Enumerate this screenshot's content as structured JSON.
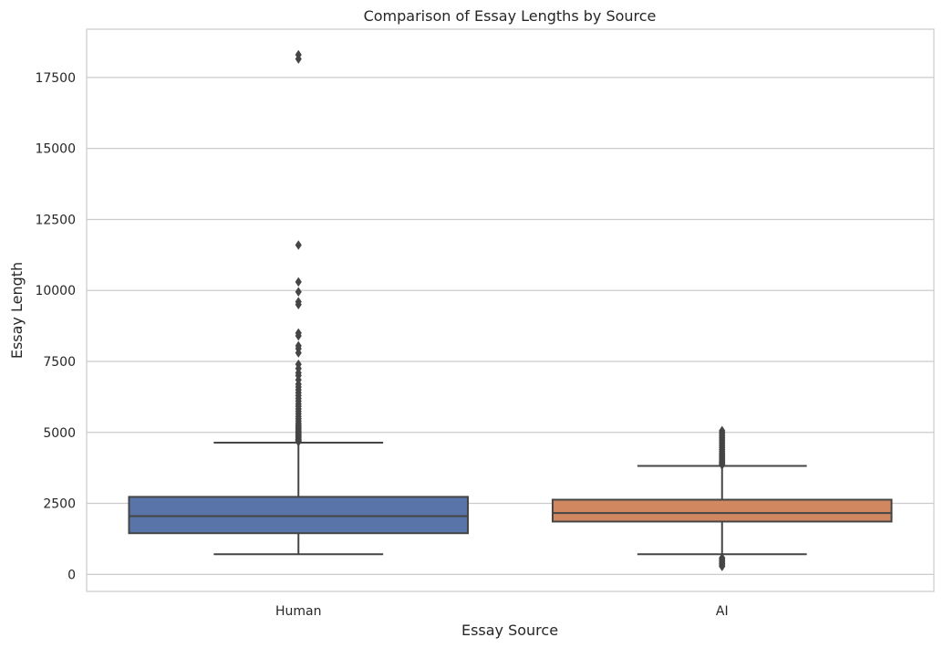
{
  "chart_data": {
    "type": "boxplot",
    "title": "Comparison of Essay Lengths by Source",
    "xlabel": "Essay Source",
    "ylabel": "Essay Length",
    "categories": [
      "Human",
      "AI"
    ],
    "ylim": [
      -600,
      19200
    ],
    "yticks": [
      0,
      2500,
      5000,
      7500,
      10000,
      12500,
      15000,
      17500
    ],
    "grid": true,
    "colors": [
      "#5874a8",
      "#d1875f"
    ],
    "boxes": [
      {
        "category": "Human",
        "whisker_low": 710,
        "q1": 1450,
        "median": 2050,
        "q3": 2730,
        "whisker_high": 4640,
        "outliers": [
          4670,
          4700,
          4730,
          4760,
          4800,
          4840,
          4880,
          4920,
          4960,
          5000,
          5050,
          5100,
          5150,
          5200,
          5260,
          5320,
          5400,
          5480,
          5560,
          5650,
          5740,
          5830,
          5920,
          6000,
          6100,
          6200,
          6300,
          6400,
          6500,
          6600,
          6700,
          6850,
          7000,
          7100,
          7250,
          7400,
          7800,
          7950,
          8050,
          8400,
          8500,
          9500,
          9600,
          9950,
          10300,
          11600,
          18150,
          18300
        ]
      },
      {
        "category": "AI",
        "whisker_low": 710,
        "q1": 1860,
        "median": 2160,
        "q3": 2630,
        "whisker_high": 3820,
        "outliers": [
          280,
          330,
          380,
          430,
          480,
          530,
          580,
          3850,
          3880,
          3910,
          3950,
          3990,
          4030,
          4080,
          4130,
          4180,
          4230,
          4280,
          4340,
          4400,
          4460,
          4520,
          4580,
          4640,
          4700,
          4760,
          4820,
          4880,
          4940,
          5000,
          5060
        ]
      }
    ]
  }
}
